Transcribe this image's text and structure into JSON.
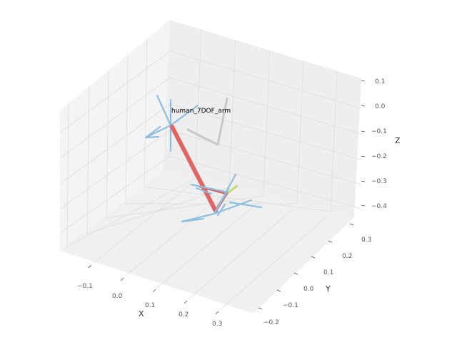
{
  "chart_data": {
    "type": "3d-line",
    "annotation": "human_7DOF_arm",
    "axes": {
      "x": {
        "label": "X",
        "ticks": [
          "−0.1",
          "0.0",
          "0.1",
          "0.2",
          "0.3"
        ]
      },
      "y": {
        "label": "Y",
        "ticks": [
          "−0.2",
          "−0.1",
          "0.0",
          "0.1",
          "0.2",
          "0.3"
        ]
      },
      "z": {
        "label": "Z",
        "ticks": [
          "0.1",
          "0.0",
          "−0.1",
          "−0.2",
          "−0.3",
          "−0.4"
        ]
      }
    },
    "grid": true,
    "colors": {
      "link": "#e06666",
      "frame": "#8fbfe0",
      "shadow": "#c8c8c8",
      "end_effector": "#b8d860",
      "pane": "#f2f2f2",
      "grid": "#dcdcdc"
    }
  }
}
